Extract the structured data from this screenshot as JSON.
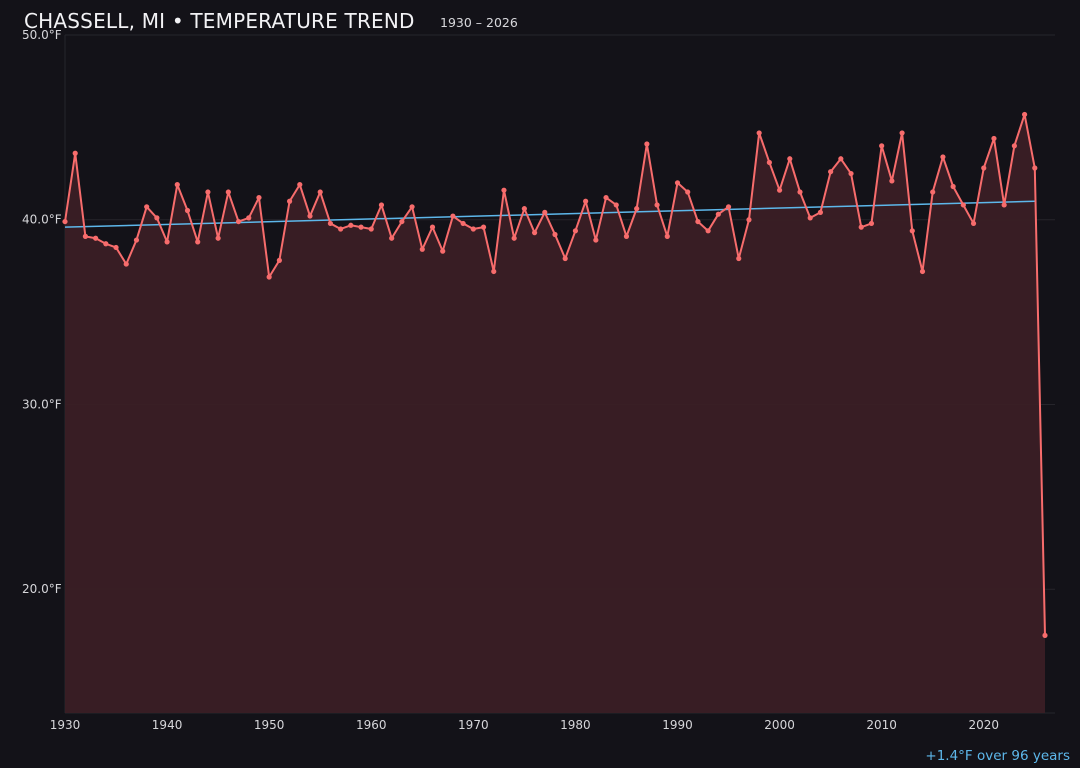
{
  "title": "CHASSELL, MI • TEMPERATURE TREND",
  "subtitle": "1930 – 2026",
  "annotation": "+1.4°F over 96 years",
  "colors": {
    "background": "#131218",
    "series": "#f76c6c",
    "fill": "#3a1f25",
    "trend": "#5db7ea",
    "grid": "#26252b"
  },
  "chart_data": {
    "type": "area",
    "title": "CHASSELL, MI • TEMPERATURE TREND",
    "subtitle": "1930 – 2026",
    "xlabel": "",
    "ylabel": "",
    "xlim": [
      1930,
      2027
    ],
    "ylim": [
      13.3,
      50
    ],
    "grid": true,
    "x_ticks": [
      "1930",
      "1940",
      "1950",
      "1960",
      "1970",
      "1980",
      "1990",
      "2000",
      "2010",
      "2020"
    ],
    "y_ticks": [
      "20.0°F",
      "30.0°F",
      "40.0°F",
      "50.0°F"
    ],
    "y_tick_values": [
      20,
      30,
      40,
      50
    ],
    "x_tick_values": [
      1930,
      1940,
      1950,
      1960,
      1970,
      1980,
      1990,
      2000,
      2010,
      2020
    ],
    "x": [
      1930,
      1931,
      1932,
      1933,
      1934,
      1935,
      1936,
      1937,
      1938,
      1939,
      1940,
      1941,
      1942,
      1943,
      1944,
      1945,
      1946,
      1947,
      1948,
      1949,
      1950,
      1951,
      1952,
      1953,
      1954,
      1955,
      1956,
      1957,
      1958,
      1959,
      1960,
      1961,
      1962,
      1963,
      1964,
      1965,
      1966,
      1967,
      1968,
      1969,
      1970,
      1971,
      1972,
      1973,
      1974,
      1975,
      1976,
      1977,
      1978,
      1979,
      1980,
      1981,
      1982,
      1983,
      1984,
      1985,
      1986,
      1987,
      1988,
      1989,
      1990,
      1991,
      1992,
      1993,
      1994,
      1995,
      1996,
      1997,
      1998,
      1999,
      2000,
      2001,
      2002,
      2003,
      2004,
      2005,
      2006,
      2007,
      2008,
      2009,
      2010,
      2011,
      2012,
      2013,
      2014,
      2015,
      2016,
      2017,
      2018,
      2019,
      2020,
      2021,
      2022,
      2023,
      2024,
      2025,
      2026
    ],
    "values": [
      39.9,
      43.6,
      39.1,
      39.0,
      38.7,
      38.5,
      37.6,
      38.9,
      40.7,
      40.1,
      38.8,
      41.9,
      40.5,
      38.8,
      41.5,
      39.0,
      41.5,
      39.9,
      40.1,
      41.2,
      36.9,
      37.8,
      41.0,
      41.9,
      40.2,
      41.5,
      39.8,
      39.5,
      39.7,
      39.6,
      39.5,
      40.8,
      39.0,
      39.9,
      40.7,
      38.4,
      39.6,
      38.3,
      40.2,
      39.8,
      39.5,
      39.6,
      37.2,
      41.6,
      39.0,
      40.6,
      39.3,
      40.4,
      39.2,
      37.9,
      39.4,
      41.0,
      38.9,
      41.2,
      40.8,
      39.1,
      40.6,
      44.1,
      40.8,
      39.1,
      42.0,
      41.5,
      39.9,
      39.4,
      40.3,
      40.7,
      37.9,
      40.0,
      44.7,
      43.1,
      41.6,
      43.3,
      41.5,
      40.1,
      40.4,
      42.6,
      43.3,
      42.5,
      39.6,
      39.8,
      44.0,
      42.1,
      44.7,
      39.4,
      37.2,
      41.5,
      43.4,
      41.8,
      40.8,
      39.8,
      42.8,
      44.4,
      40.8,
      44.0,
      45.7,
      42.8,
      17.5
    ],
    "trend": {
      "x": [
        1930,
        2025
      ],
      "values": [
        39.6,
        41.0
      ]
    }
  }
}
